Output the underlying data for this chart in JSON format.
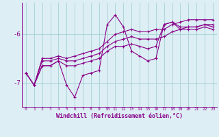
{
  "xlabel": "Windchill (Refroidissement éolien,°C)",
  "hours": [
    0,
    1,
    2,
    3,
    4,
    5,
    6,
    7,
    8,
    9,
    10,
    11,
    12,
    13,
    14,
    15,
    16,
    17,
    18,
    19,
    20,
    21,
    22,
    23
  ],
  "line1": [
    -6.8,
    -7.05,
    -6.65,
    -6.65,
    -6.55,
    -7.05,
    -7.3,
    -6.85,
    -6.8,
    -6.75,
    -5.8,
    -5.6,
    -5.85,
    -6.35,
    -6.45,
    -6.55,
    -6.5,
    -5.8,
    -5.75,
    -5.9,
    -5.9,
    -5.9,
    -5.85,
    -5.9
  ],
  "line2": [
    -6.8,
    -7.05,
    -6.65,
    -6.65,
    -6.55,
    -6.65,
    -6.65,
    -6.6,
    -6.55,
    -6.5,
    -6.35,
    -6.25,
    -6.25,
    -6.2,
    -6.25,
    -6.3,
    -6.25,
    -5.8,
    -5.75,
    -5.85,
    -5.85,
    -5.85,
    -5.8,
    -5.85
  ],
  "line3": [
    -6.8,
    -7.05,
    -6.55,
    -6.55,
    -6.5,
    -6.55,
    -6.55,
    -6.5,
    -6.45,
    -6.4,
    -6.25,
    -6.15,
    -6.1,
    -6.05,
    -6.1,
    -6.1,
    -6.1,
    -6.05,
    -5.95,
    -5.9,
    -5.85,
    -5.85,
    -5.8,
    -5.8
  ],
  "line4": [
    -6.8,
    -7.05,
    -6.5,
    -6.5,
    -6.45,
    -6.5,
    -6.45,
    -6.4,
    -6.35,
    -6.3,
    -6.15,
    -6.0,
    -5.95,
    -5.9,
    -5.95,
    -5.95,
    -5.9,
    -5.9,
    -5.8,
    -5.75,
    -5.7,
    -5.7,
    -5.7,
    -5.7
  ],
  "line_color": "#880088",
  "bg_color": "#ddeef5",
  "grid_color": "#99cccc",
  "ylim": [
    -7.5,
    -5.35
  ],
  "yticks": [
    -7.0,
    -6.0
  ],
  "ytick_labels": [
    "-7",
    "-6"
  ],
  "xtick_fontsize": 4.5,
  "ytick_fontsize": 6.5,
  "xlabel_fontsize": 6.0,
  "marker": "+",
  "markersize": 2.5,
  "linewidth": 0.8
}
